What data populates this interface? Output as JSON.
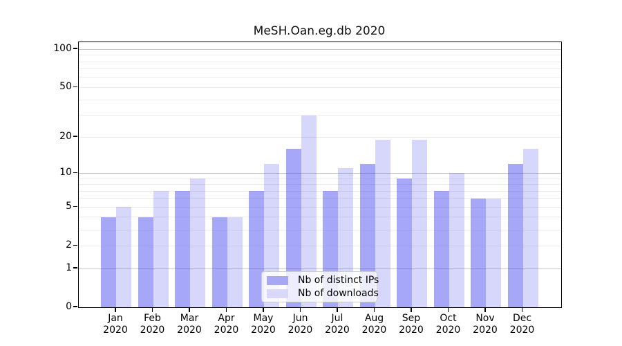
{
  "title": "MeSH.Oan.eg.db 2020",
  "chart_data": {
    "type": "bar",
    "title": "MeSH.Oan.eg.db 2020",
    "categories": [
      "Jan",
      "Feb",
      "Mar",
      "Apr",
      "May",
      "Jun",
      "Jul",
      "Aug",
      "Sep",
      "Oct",
      "Nov",
      "Dec"
    ],
    "category_year": "2020",
    "series": [
      {
        "name": "Nb of distinct IPs",
        "color": "#a7a7f3",
        "fill_rgba": "rgba(45,45,238,0.42)",
        "values": [
          4,
          4,
          7,
          4,
          7,
          16,
          7,
          12,
          9,
          7,
          6,
          12
        ]
      },
      {
        "name": "Nb of downloads",
        "color": "#d8d8f9",
        "fill_rgba": "rgba(45,45,238,0.19)",
        "values": [
          5,
          7,
          9,
          4,
          12,
          30,
          11,
          19,
          19,
          10,
          6,
          16
        ]
      }
    ],
    "xlabel": "",
    "ylabel": "",
    "yscale": "log1p",
    "ylim": [
      0,
      113
    ],
    "yticks": [
      0,
      1,
      2,
      5,
      10,
      20,
      50,
      100
    ],
    "major_gridlines": [
      1,
      10,
      100
    ],
    "minor_gridlines": [
      2,
      3,
      4,
      5,
      6,
      7,
      8,
      9,
      20,
      30,
      40,
      50,
      60,
      70,
      80,
      90
    ],
    "grid": true,
    "legend_position": "lower center",
    "legend_entries": [
      "Nb of distinct IPs",
      "Nb of downloads"
    ]
  },
  "colors": {
    "grid_major": "#c6c6c6",
    "grid_minor": "#ececec",
    "spine": "#000000",
    "text": "#000000",
    "legend_border": "#cccccc",
    "legend_bg": "rgba(255,255,255,0.8)"
  }
}
